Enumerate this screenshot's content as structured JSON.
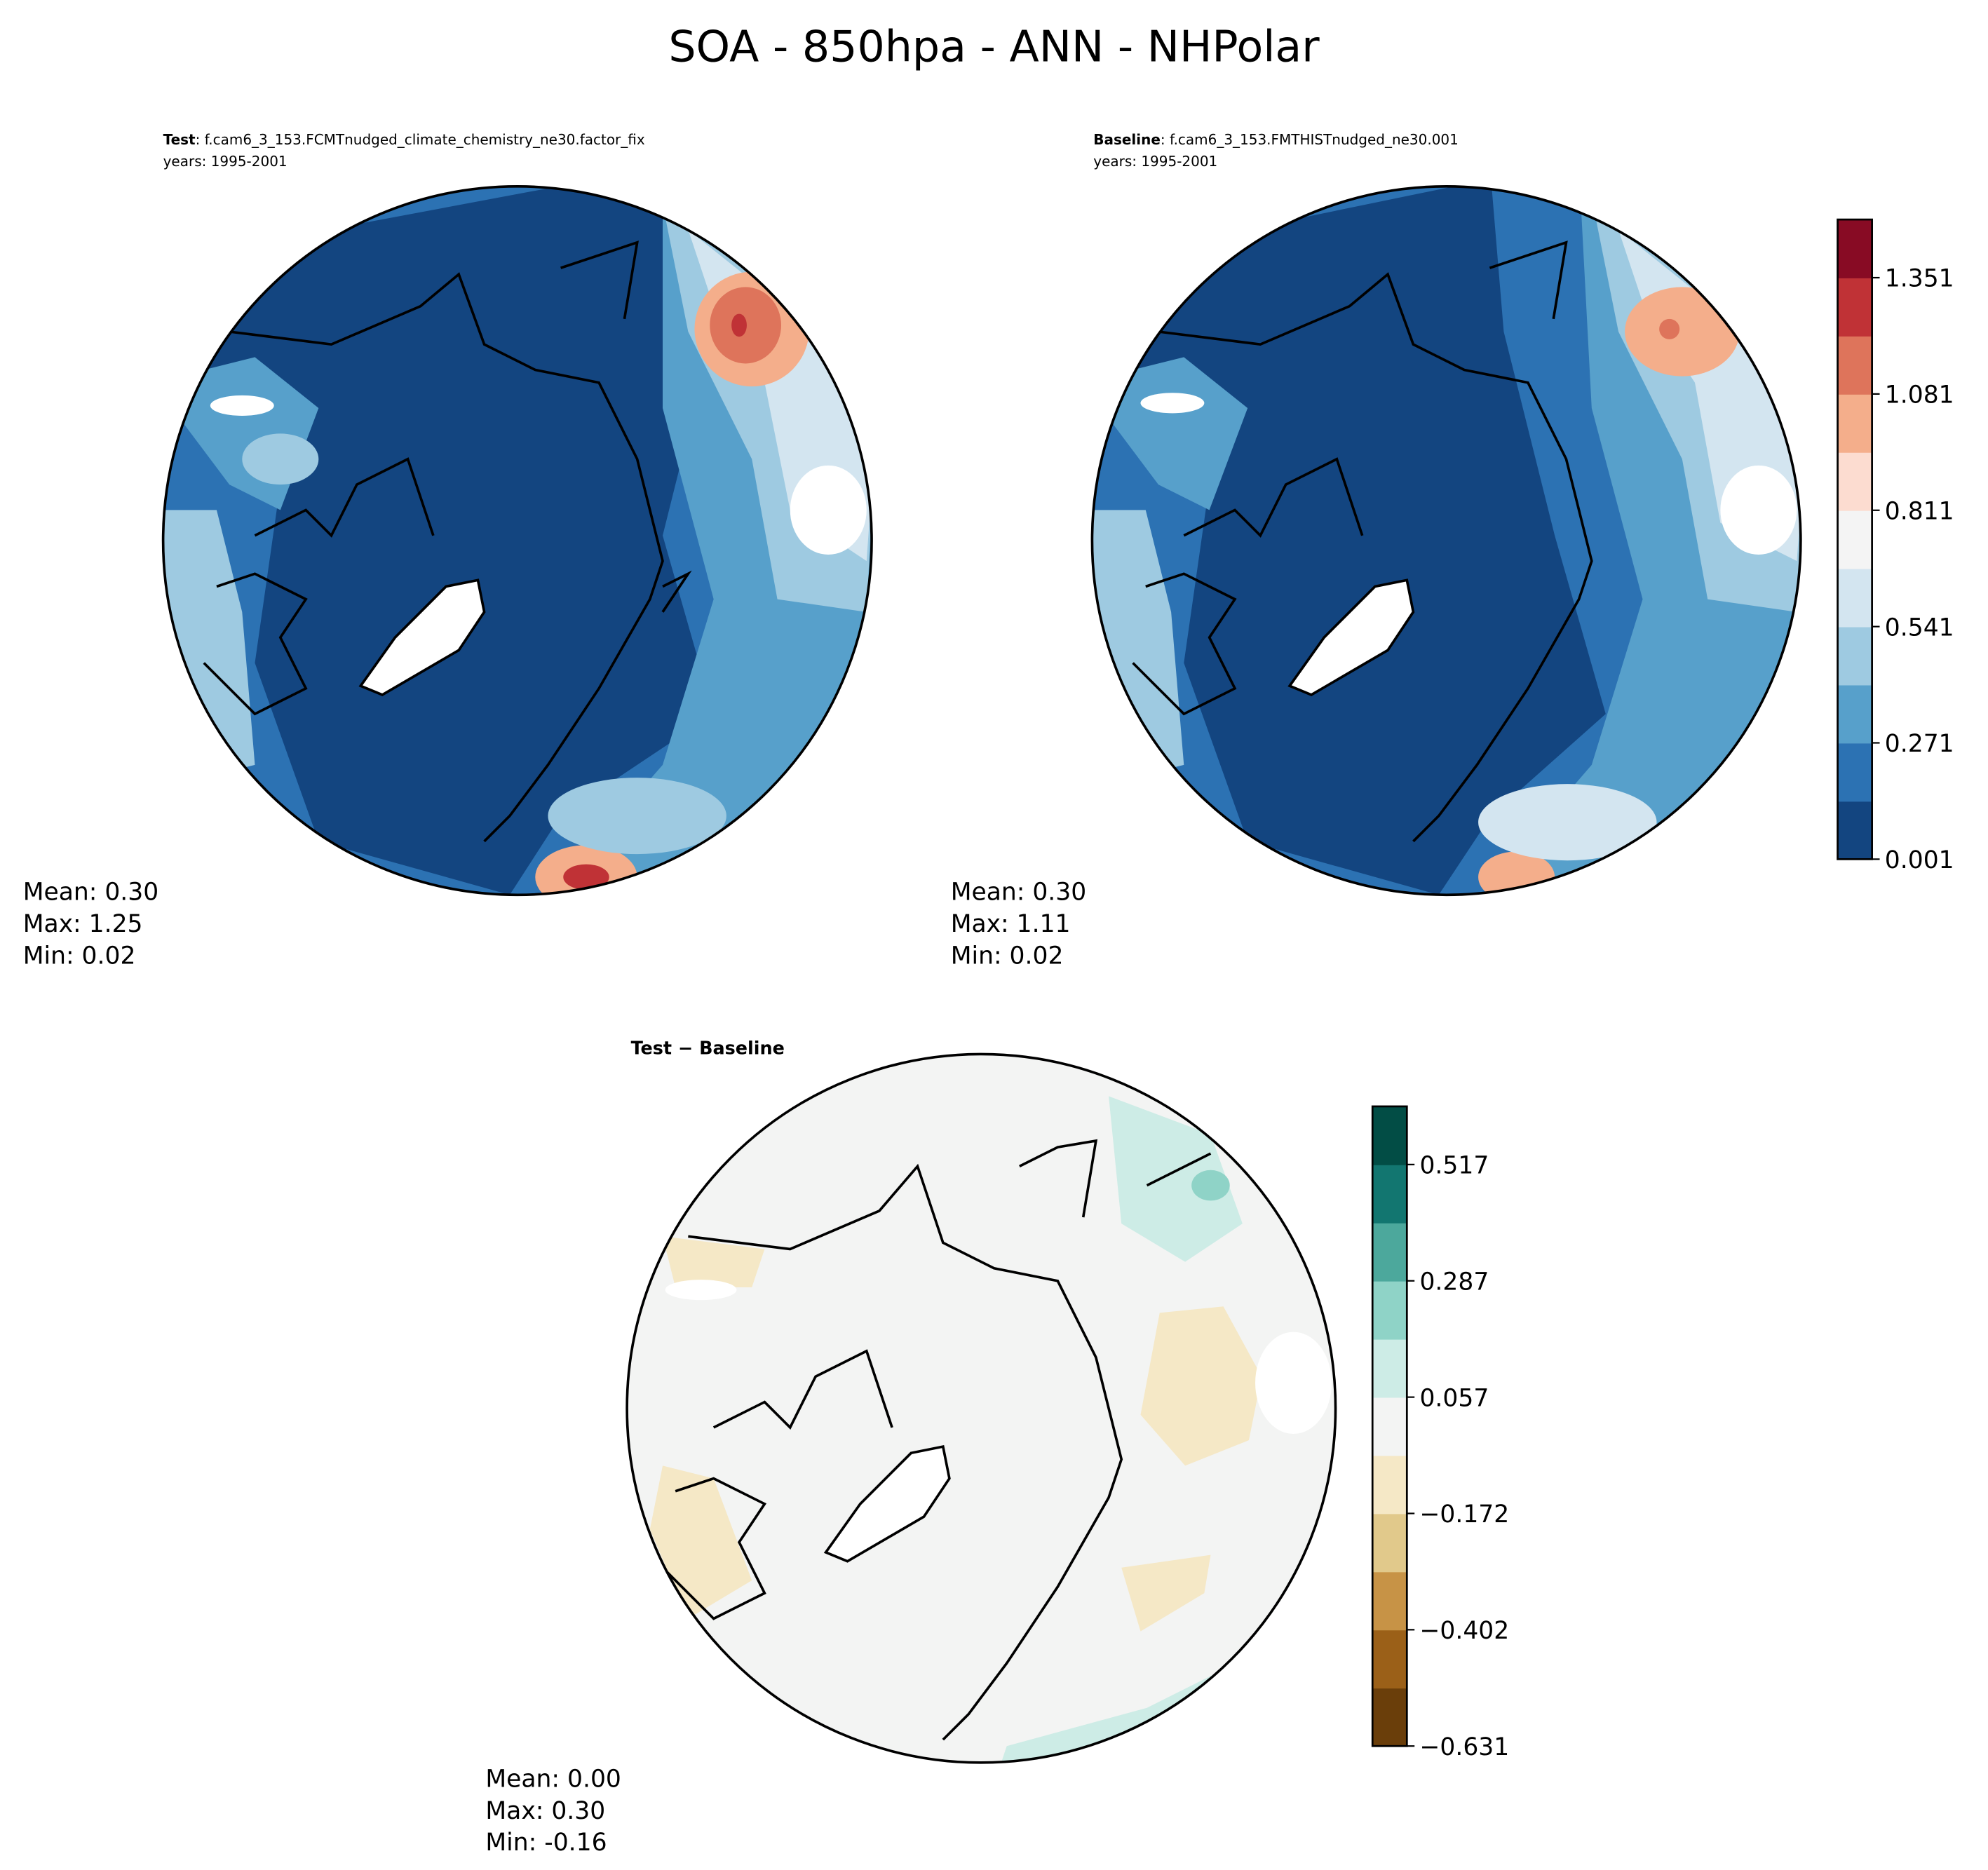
{
  "title": "SOA - 850hpa - ANN - NHPolar",
  "chart_data": [
    {
      "type": "heatmap",
      "projection": "north-polar-stereographic",
      "label_bold": "Test",
      "label_case": ": f.cam6_3_153.FCMTnudged_climate_chemistry_ne30.factor_fix",
      "years": "years: 1995-2001",
      "stats": {
        "mean": "Mean:  0.30",
        "max": "Max:  1.25",
        "min": "Min:  0.02"
      },
      "levels_min": 0.001,
      "level_step": 0.135,
      "n_levels": 11
    },
    {
      "type": "heatmap",
      "projection": "north-polar-stereographic",
      "label_bold": "Baseline",
      "label_case": ": f.cam6_3_153.FMTHISTnudged_ne30.001",
      "years": "years: 1995-2001",
      "stats": {
        "mean": "Mean:  0.30",
        "max": "Max:  1.11",
        "min": "Min:  0.02"
      },
      "levels_min": 0.001,
      "level_step": 0.135,
      "n_levels": 11
    },
    {
      "type": "heatmap",
      "projection": "north-polar-stereographic",
      "label_bold": "Test − Baseline",
      "stats": {
        "mean": "Mean:  0.00",
        "max": "Max:  0.30",
        "min": "Min: -0.16"
      },
      "levels_min": -0.631,
      "level_step": 0.1148,
      "n_levels": 11
    }
  ],
  "colorbars": [
    {
      "ticks": [
        "0.001",
        "0.271",
        "0.541",
        "0.811",
        "1.081",
        "1.351"
      ],
      "colors": [
        "#134580",
        "#2c72b3",
        "#57a0cb",
        "#9ecae1",
        "#d3e5f0",
        "#f4f4f4",
        "#fcdcd0",
        "#f4ae8b",
        "#de745b",
        "#c03236",
        "#880b24"
      ]
    },
    {
      "ticks": [
        "−0.631",
        "−0.402",
        "−0.172",
        "0.057",
        "0.287",
        "0.517"
      ],
      "colors": [
        "#6a3e0a",
        "#9b6018",
        "#c79346",
        "#e1c98b",
        "#f5e8c6",
        "#f3f4f3",
        "#cdece6",
        "#8fd3c7",
        "#4ca89c",
        "#127670",
        "#024d45"
      ]
    }
  ]
}
